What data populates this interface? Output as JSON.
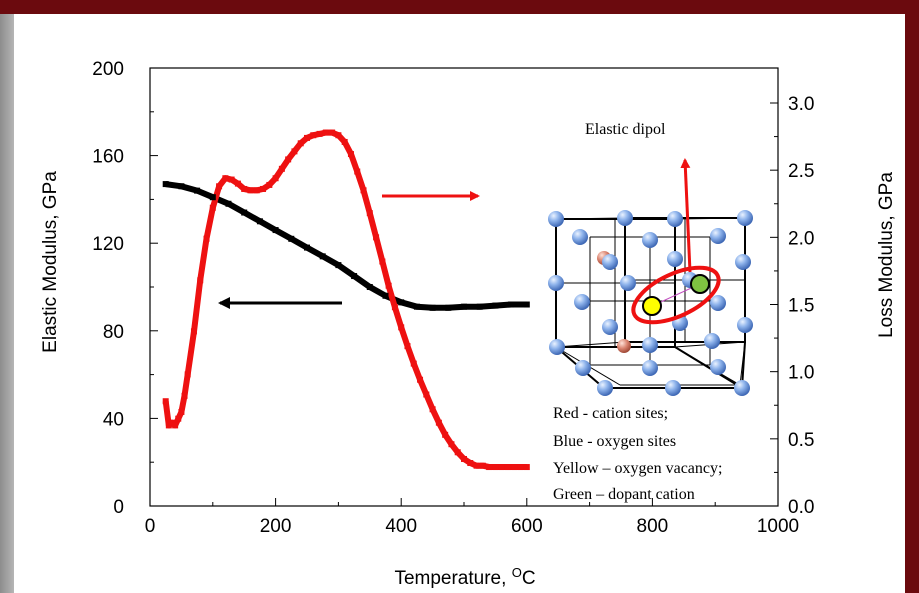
{
  "chart_data": {
    "type": "line",
    "xlabel": "Temperature, ",
    "xlabel_unit_sup": "O",
    "xlabel_unit": "C",
    "ylabel": "Elastic Modulus, GPa",
    "y2label": "Loss Modulus, GPa",
    "xlim": [
      0,
      1000
    ],
    "ylim": [
      0,
      200
    ],
    "y2lim": [
      0,
      3.0
    ],
    "xticks": [
      "0",
      "200",
      "400",
      "600",
      "800",
      "1000"
    ],
    "yticks": [
      "0",
      "40",
      "80",
      "120",
      "160",
      "200"
    ],
    "y2ticks": [
      "0.0",
      "0.5",
      "1.0",
      "1.5",
      "2.0",
      "2.5",
      "3.0"
    ],
    "series": [
      {
        "color": "#000000",
        "axis": "left",
        "x": [
          25,
          50,
          75,
          100,
          125,
          150,
          175,
          200,
          225,
          250,
          275,
          300,
          325,
          350,
          375,
          400,
          425,
          450,
          475,
          500,
          525,
          550,
          575,
          600
        ],
        "y": [
          147,
          146,
          144,
          141,
          138,
          134,
          130,
          126,
          122,
          118,
          114,
          110,
          105,
          100,
          96,
          93,
          91,
          90.5,
          90.5,
          91,
          91,
          91.5,
          92,
          92
        ]
      },
      {
        "color": "#ee1111",
        "axis": "right",
        "x": [
          25,
          30,
          35,
          40,
          45,
          50,
          55,
          60,
          70,
          80,
          90,
          100,
          110,
          120,
          130,
          140,
          150,
          160,
          170,
          180,
          190,
          200,
          210,
          220,
          230,
          240,
          250,
          260,
          270,
          280,
          290,
          300,
          310,
          320,
          330,
          340,
          350,
          360,
          370,
          380,
          390,
          400,
          410,
          420,
          430,
          440,
          450,
          460,
          470,
          480,
          490,
          500,
          510,
          520,
          530,
          540,
          550,
          560,
          570,
          580,
          590,
          600
        ],
        "y": [
          0.78,
          0.6,
          0.62,
          0.6,
          0.65,
          0.7,
          0.82,
          0.98,
          1.3,
          1.68,
          1.99,
          2.22,
          2.38,
          2.44,
          2.43,
          2.4,
          2.36,
          2.35,
          2.35,
          2.36,
          2.39,
          2.44,
          2.51,
          2.58,
          2.64,
          2.7,
          2.74,
          2.76,
          2.77,
          2.78,
          2.78,
          2.76,
          2.71,
          2.62,
          2.49,
          2.35,
          2.18,
          2.0,
          1.82,
          1.64,
          1.48,
          1.33,
          1.19,
          1.06,
          0.94,
          0.83,
          0.72,
          0.62,
          0.53,
          0.46,
          0.4,
          0.35,
          0.32,
          0.3,
          0.3,
          0.29,
          0.29,
          0.29,
          0.29,
          0.29,
          0.29,
          0.29
        ]
      }
    ],
    "annotations": {
      "dipole_label": "Elastic dipol",
      "legend_lines": [
        "Red - cation sites;",
        "Blue - oxygen sites",
        "Yellow – oxygen vacancy;",
        "Green – dopant cation"
      ]
    },
    "colors": {
      "frame": "#6b0a0e",
      "red": "#ee1111",
      "black": "#000000",
      "oxygen_site": "#6a97dc",
      "cation_site": "#d9826e",
      "vacancy": "#ffff00",
      "dopant": "#7fc241"
    }
  }
}
